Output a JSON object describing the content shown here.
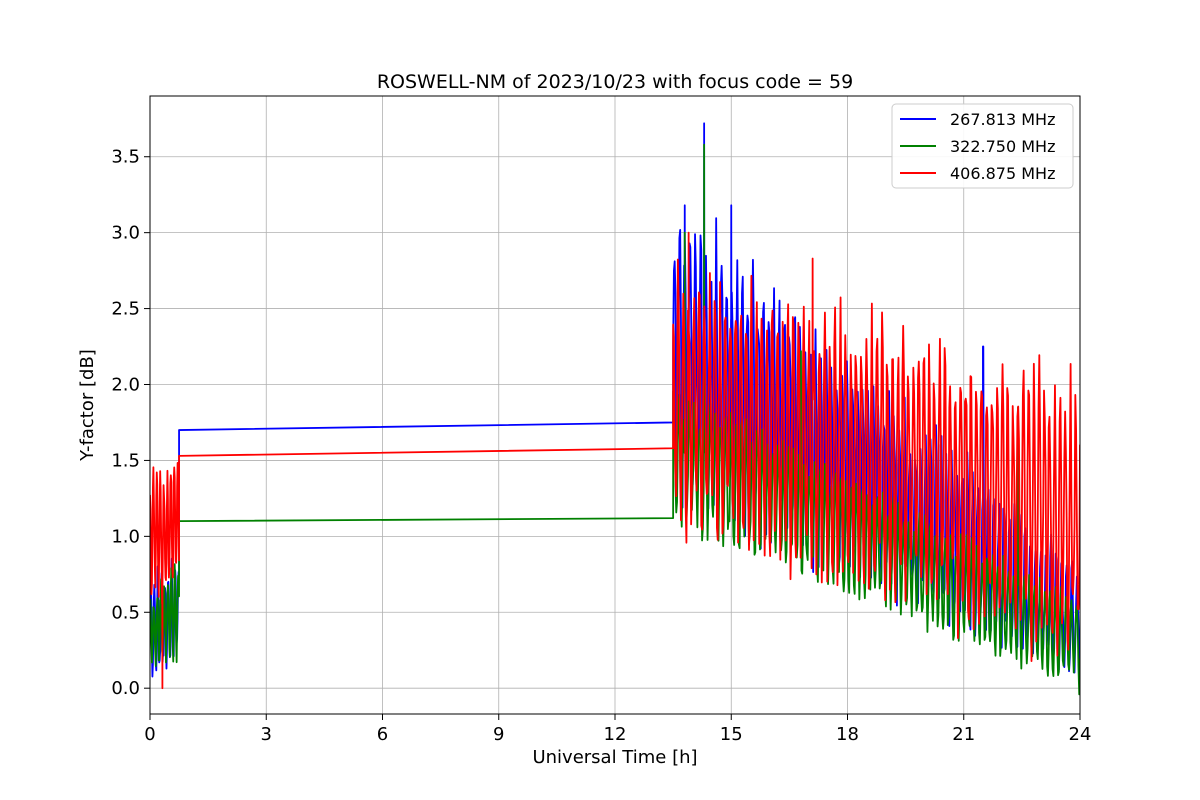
{
  "chart_data": {
    "type": "line",
    "title": "ROSWELL-NM of 2023/10/23 with focus code = 59",
    "xlabel": "Universal Time [h]",
    "ylabel": "Y-factor [dB]",
    "xlim": [
      0,
      24
    ],
    "ylim": [
      -0.17,
      3.9
    ],
    "xticks": [
      0,
      3,
      6,
      9,
      12,
      15,
      18,
      21,
      24
    ],
    "yticks": [
      0.0,
      0.5,
      1.0,
      1.5,
      2.0,
      2.5,
      3.0,
      3.5
    ],
    "xtick_labels": [
      "0",
      "3",
      "6",
      "9",
      "12",
      "15",
      "18",
      "21",
      "24"
    ],
    "ytick_labels": [
      "0.0",
      "0.5",
      "1.0",
      "1.5",
      "2.0",
      "2.5",
      "3.0",
      "3.5"
    ],
    "grid": true,
    "legend_position": "top-right",
    "series": [
      {
        "name": "267.813 MHz",
        "color": "#0000ff",
        "gap": {
          "start_x": 0.75,
          "start_y": 1.7,
          "end_x": 13.5,
          "end_y": 1.75
        },
        "dense_segments": [
          {
            "x_start": 0.0,
            "x_end": 0.75,
            "min_start": 0.02,
            "max_start": 0.7,
            "min_end": 0.25,
            "max_end": 0.85
          },
          {
            "x_start": 13.5,
            "x_end": 24.0,
            "min_start": 1.35,
            "max_start": 3.15,
            "min_end": 0.05,
            "max_end": 0.8
          }
        ],
        "peaks": [
          {
            "x": 14.3,
            "y": 3.72
          },
          {
            "x": 13.8,
            "y": 3.18
          },
          {
            "x": 15.0,
            "y": 3.18
          },
          {
            "x": 21.5,
            "y": 2.18
          }
        ]
      },
      {
        "name": "322.750 MHz",
        "color": "#008000",
        "gap": {
          "start_x": 0.75,
          "start_y": 1.1,
          "end_x": 13.5,
          "end_y": 1.12
        },
        "dense_segments": [
          {
            "x_start": 0.0,
            "x_end": 0.75,
            "min_start": 0.15,
            "max_start": 0.6,
            "min_end": 0.2,
            "max_end": 0.85
          },
          {
            "x_start": 13.5,
            "x_end": 24.0,
            "min_start": 1.1,
            "max_start": 2.0,
            "min_end": 0.0,
            "max_end": 0.6
          }
        ],
        "peaks": [
          {
            "x": 14.3,
            "y": 3.58
          },
          {
            "x": 13.8,
            "y": 3.0
          },
          {
            "x": 16.8,
            "y": 2.22
          },
          {
            "x": 22.4,
            "y": 1.85
          }
        ]
      },
      {
        "name": "406.875 MHz",
        "color": "#ff0000",
        "gap": {
          "start_x": 0.75,
          "start_y": 1.53,
          "end_x": 13.5,
          "end_y": 1.58
        },
        "dense_segments": [
          {
            "x_start": 0.0,
            "x_end": 0.75,
            "min_start": 0.55,
            "max_start": 1.38,
            "min_end": 0.7,
            "max_end": 1.5
          },
          {
            "x_start": 13.5,
            "x_end": 24.0,
            "min_start": 1.05,
            "max_start": 2.75,
            "min_end": 0.25,
            "max_end": 2.0
          }
        ],
        "peaks": [
          {
            "x": 0.32,
            "y": 0.0
          },
          {
            "x": 13.9,
            "y": 3.0
          },
          {
            "x": 17.1,
            "y": 2.83
          }
        ]
      }
    ]
  }
}
